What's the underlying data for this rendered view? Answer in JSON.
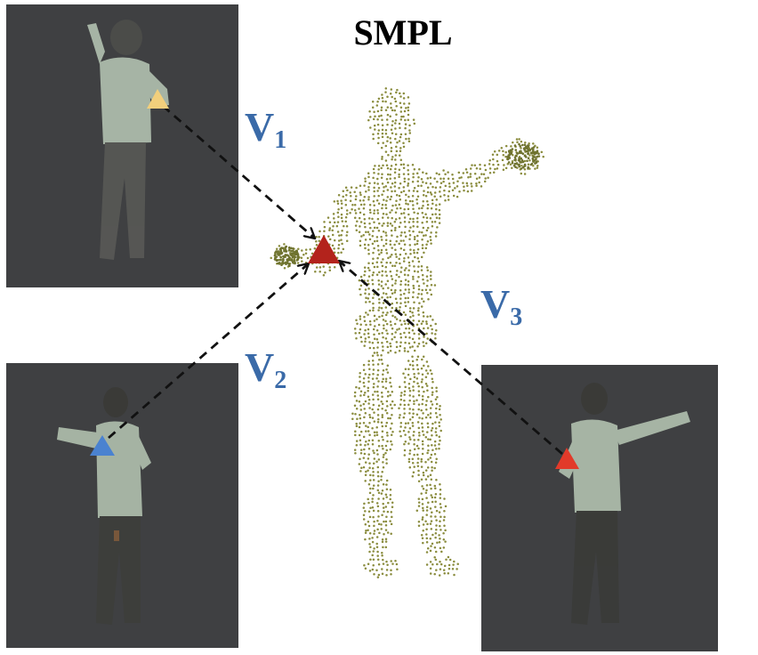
{
  "title": "SMPL",
  "views": [
    {
      "label": "V",
      "sub": "1"
    },
    {
      "label": "V",
      "sub": "2"
    },
    {
      "label": "V",
      "sub": "3"
    }
  ],
  "colors": {
    "label_blue": "#3a6aa8",
    "photo_bg": "#3f4042",
    "mesh_dot": "#8a8c3e",
    "marker_yellow": "#f2cf7c",
    "marker_blue": "#4a82d0",
    "marker_red": "#e23a2a",
    "marker_dark_red": "#b3231c",
    "arrow": "#111111"
  },
  "icons": {
    "marker": "triangle-marker-icon",
    "arrowhead": "arrowhead-icon"
  }
}
